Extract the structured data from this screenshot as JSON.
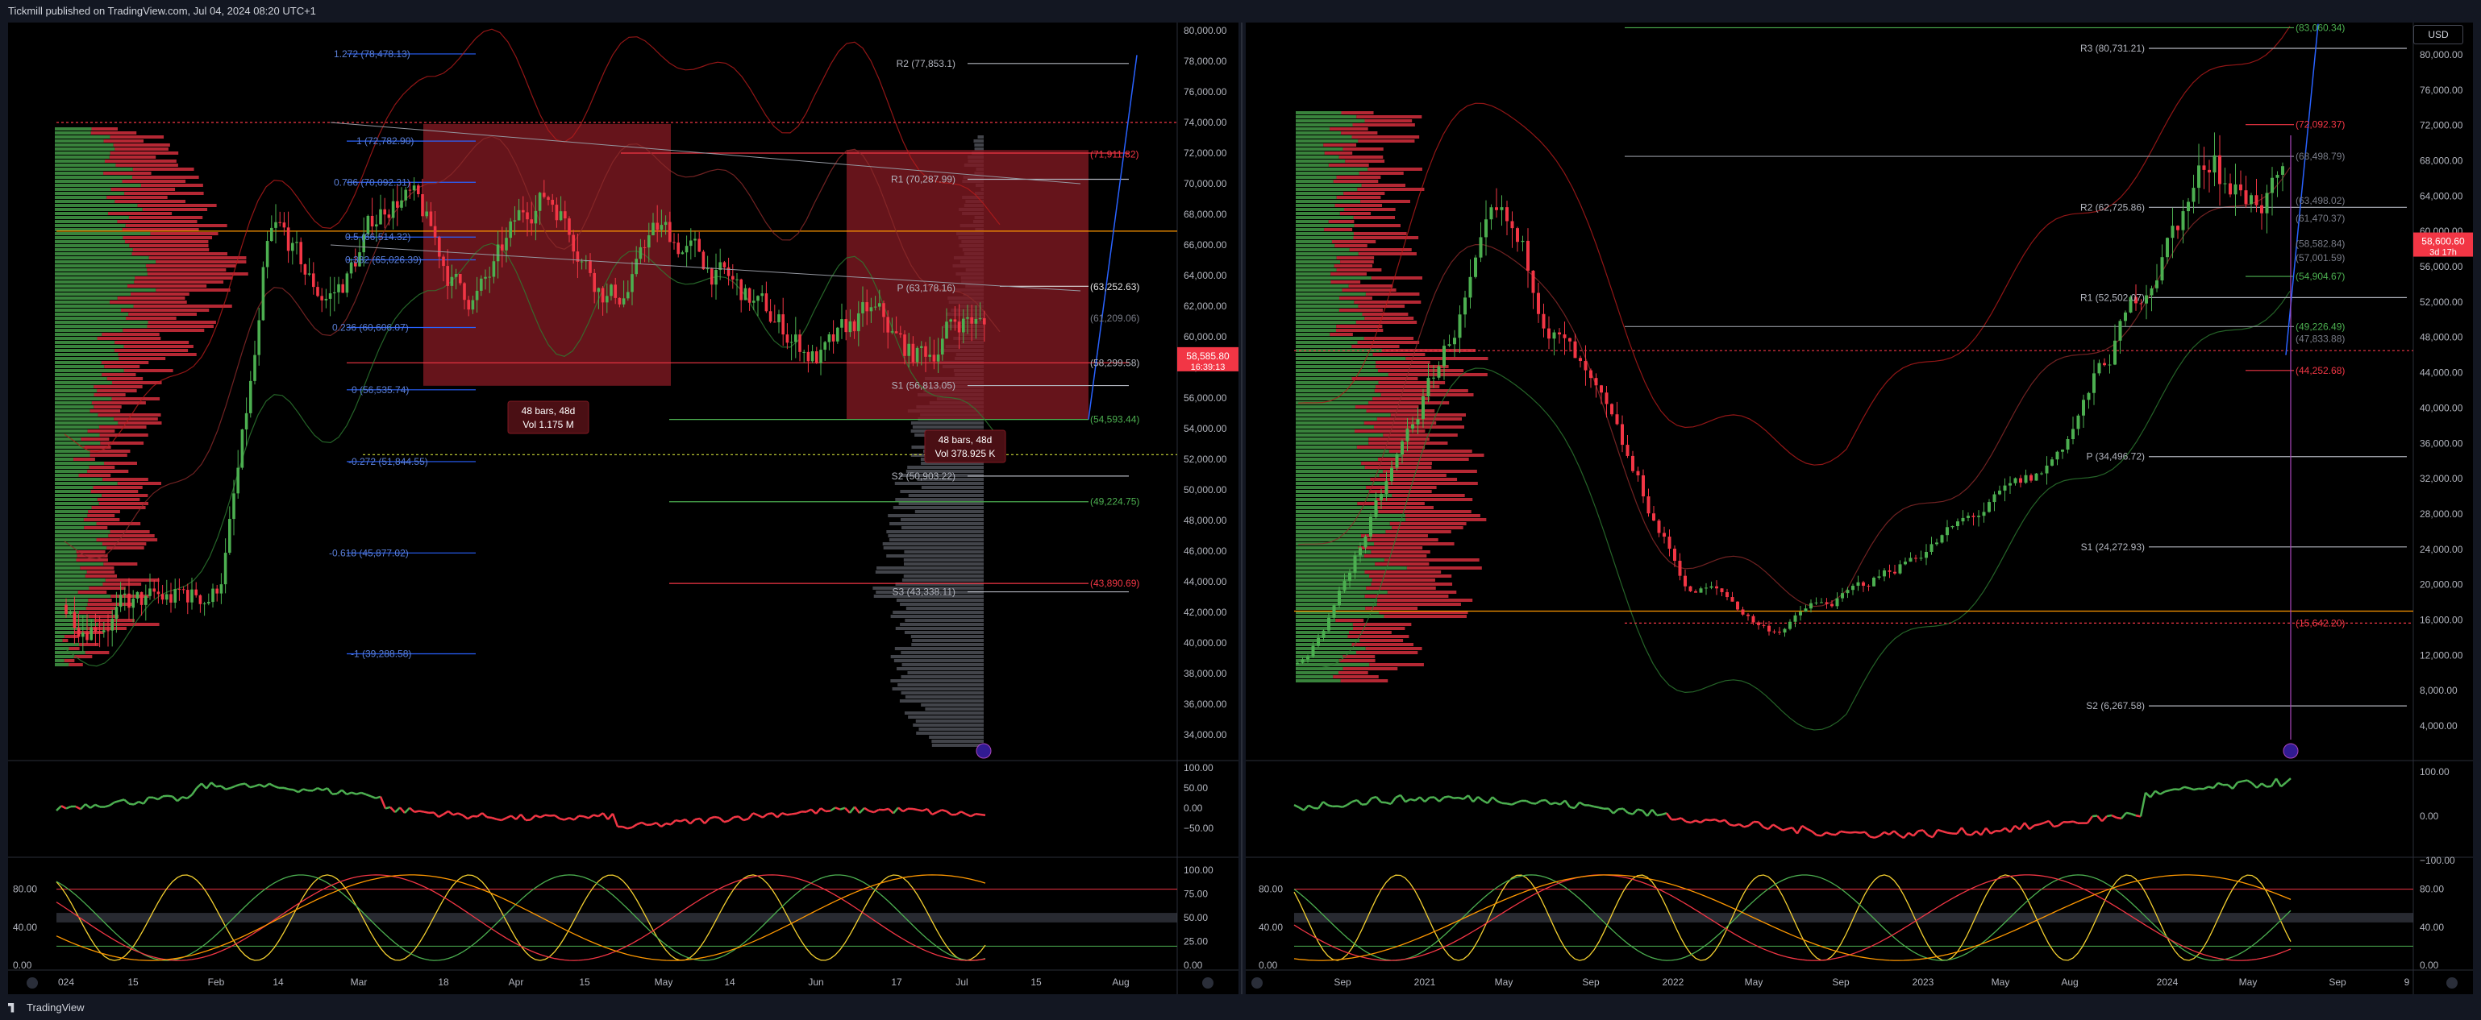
{
  "header": {
    "published_text": "Tickmill published on TradingView.com, Jul 04, 2024 08:20 UTC+1"
  },
  "footer": {
    "brand": "TradingView"
  },
  "colors": {
    "up": "#26a69a",
    "green": "#4caf50",
    "red": "#f23645",
    "orange": "#ff9800",
    "blue": "#2962ff"
  },
  "left": {
    "price_axis": [
      "80,000.00",
      "78,000.00",
      "76,000.00",
      "74,000.00",
      "72,000.00",
      "70,000.00",
      "68,000.00",
      "66,000.00",
      "64,000.00",
      "62,000.00",
      "60,000.00",
      "58,000.00",
      "56,000.00",
      "54,000.00",
      "52,000.00",
      "50,000.00",
      "48,000.00",
      "46,000.00",
      "44,000.00",
      "42,000.00",
      "40,000.00",
      "38,000.00",
      "36,000.00",
      "34,000.00"
    ],
    "price_tag": {
      "price": "58,585.80",
      "countdown": "16:39:13"
    },
    "time_axis": [
      "024",
      "15",
      "Feb",
      "14",
      "Mar",
      "18",
      "Apr",
      "15",
      "May",
      "14",
      "Jun",
      "17",
      "Jul",
      "15",
      "Aug"
    ],
    "fib_labels": [
      "1.272 (78,478.13)",
      "1 (72,782.90)",
      "0.786 (70,092.31)",
      "0.5 (66,514.32)",
      "0.382 (65,026.39)",
      "0.236 (60,606.07)",
      "0 (56,535.74)",
      "-0.272 (51,844.55)",
      "-0.618 (45,877.02)",
      "-1 (39,288.58)"
    ],
    "pivot_labels": [
      "R2 (77,853.1)",
      "R1 (70,287.99)",
      "P (63,178.16)",
      "S1 (56,813.05)",
      "S2 (50,903.22)",
      "S3 (43,338.11)"
    ],
    "level_labels": [
      "(71,911.82)",
      "(63,252.63)",
      "(61,209.06)",
      "(58,299.58)",
      "(54,593.44)",
      "(49,224.75)",
      "(43,890.69)"
    ],
    "box1": {
      "bars": "48 bars, 48d",
      "vol": "Vol 1.175 M"
    },
    "box2": {
      "bars": "48 bars, 48d",
      "vol": "Vol 378.925 K"
    },
    "rsi_axis": [
      "100.00",
      "50.00",
      "0.00",
      "−50.00"
    ],
    "stoch_axis": [
      "100.00",
      "75.00",
      "50.00",
      "25.00",
      "0.00"
    ],
    "stoch_left_axis": [
      "80.00",
      "40.00",
      "0.00"
    ]
  },
  "right": {
    "currency": "USD",
    "price_axis": [
      "80,000.00",
      "76,000.00",
      "72,000.00",
      "68,000.00",
      "64,000.00",
      "60,000.00",
      "56,000.00",
      "52,000.00",
      "48,000.00",
      "44,000.00",
      "40,000.00",
      "36,000.00",
      "32,000.00",
      "28,000.00",
      "24,000.00",
      "20,000.00",
      "16,000.00",
      "12,000.00",
      "8,000.00",
      "4,000.00"
    ],
    "price_tag": {
      "price": "58,600.60",
      "countdown": "3d 17h"
    },
    "time_axis": [
      "Sep",
      "2021",
      "May",
      "Sep",
      "2022",
      "May",
      "Sep",
      "2023",
      "May",
      "Aug",
      "2024",
      "May",
      "Sep",
      "9"
    ],
    "pivot_labels": [
      "R3 (80,731.21)",
      "R2 (62,725.86)",
      "R1 (52,502.07)",
      "P (34,496.72)",
      "S1 (24,272.93)",
      "S2 (6,267.58)"
    ],
    "level_labels": [
      "(83,060.34)",
      "(72,092.37)",
      "(68,498.79)",
      "(63,498.02)",
      "(61,470.37)",
      "(58,582.84)",
      "(57,001.59)",
      "(54,904.67)",
      "(49,226.49)",
      "(47,833.88)",
      "(44,252.68)",
      "(15,642.20)"
    ],
    "rsi_axis": [
      "100.00",
      "0.00",
      "−100.00"
    ],
    "stoch_axis": [
      "80.00",
      "40.00",
      "0.00"
    ],
    "stoch_left_axis": [
      "80.00",
      "40.00",
      "0.00"
    ]
  }
}
